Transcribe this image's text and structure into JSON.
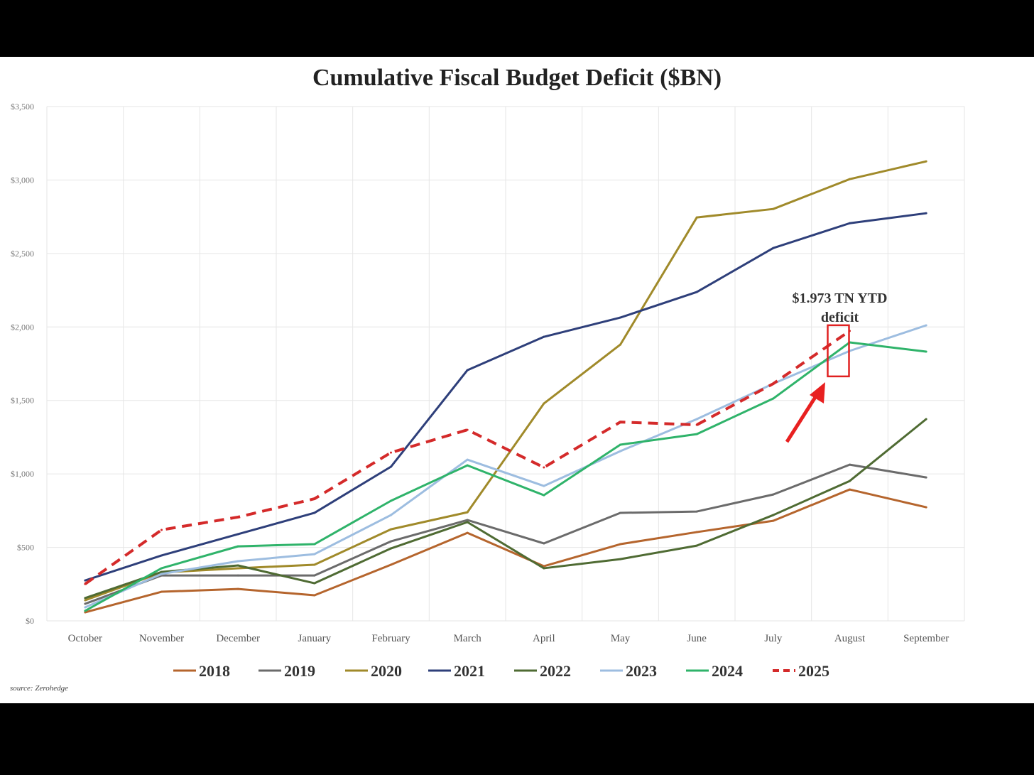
{
  "chart_data": {
    "type": "line",
    "title": "Cumulative Fiscal Budget Deficit ($BN)",
    "xlabel": "",
    "ylabel": "",
    "categories": [
      "October",
      "November",
      "December",
      "January",
      "February",
      "March",
      "April",
      "May",
      "June",
      "July",
      "August",
      "September"
    ],
    "ylim": [
      0,
      3500
    ],
    "yticks": [
      0,
      500,
      1000,
      1500,
      2000,
      2500,
      3000,
      3500
    ],
    "ytick_labels": [
      "$0",
      "$500",
      "$1,000",
      "$1,500",
      "$2,000",
      "$2,500",
      "$3,000",
      "$3,500"
    ],
    "grid": true,
    "legend_position": "bottom",
    "series": [
      {
        "name": "2018",
        "color": "#b5652d",
        "dashed": false,
        "values": [
          58,
          198,
          217,
          174,
          382,
          599,
          372,
          522,
          604,
          681,
          894,
          773
        ]
      },
      {
        "name": "2019",
        "color": "#6b6b6b",
        "dashed": false,
        "values": [
          116,
          309,
          309,
          309,
          541,
          686,
          527,
          735,
          744,
          860,
          1063,
          976
        ]
      },
      {
        "name": "2020",
        "color": "#a08a2a",
        "dashed": false,
        "values": [
          140,
          329,
          358,
          382,
          623,
          739,
          1479,
          1880,
          2745,
          2803,
          3006,
          3127
        ]
      },
      {
        "name": "2021",
        "color": "#2e3f7a",
        "dashed": false,
        "values": [
          275,
          445,
          590,
          735,
          1049,
          1706,
          1933,
          2064,
          2238,
          2537,
          2706,
          2774
        ]
      },
      {
        "name": "2022",
        "color": "#4f6b33",
        "dashed": false,
        "values": [
          155,
          333,
          377,
          256,
          493,
          672,
          358,
          420,
          512,
          720,
          952,
          1373
        ]
      },
      {
        "name": "2023",
        "color": "#9dbde0",
        "dashed": false,
        "values": [
          92,
          319,
          406,
          454,
          720,
          1097,
          918,
          1155,
          1373,
          1614,
          1837,
          2011
        ]
      },
      {
        "name": "2024",
        "color": "#2fb36a",
        "dashed": false,
        "values": [
          68,
          358,
          507,
          522,
          817,
          1058,
          855,
          1199,
          1271,
          1513,
          1895,
          1832
        ]
      },
      {
        "name": "2025",
        "color": "#d42a2a",
        "dashed": true,
        "values": [
          251,
          619,
          706,
          831,
          1145,
          1300,
          1044,
          1353,
          1334,
          1614,
          1973,
          null
        ]
      }
    ],
    "annotation": {
      "line1": "$1.973 TN YTD",
      "line2": "deficit",
      "category": "August",
      "value": 1973
    },
    "source": "source: Zerohedge"
  }
}
